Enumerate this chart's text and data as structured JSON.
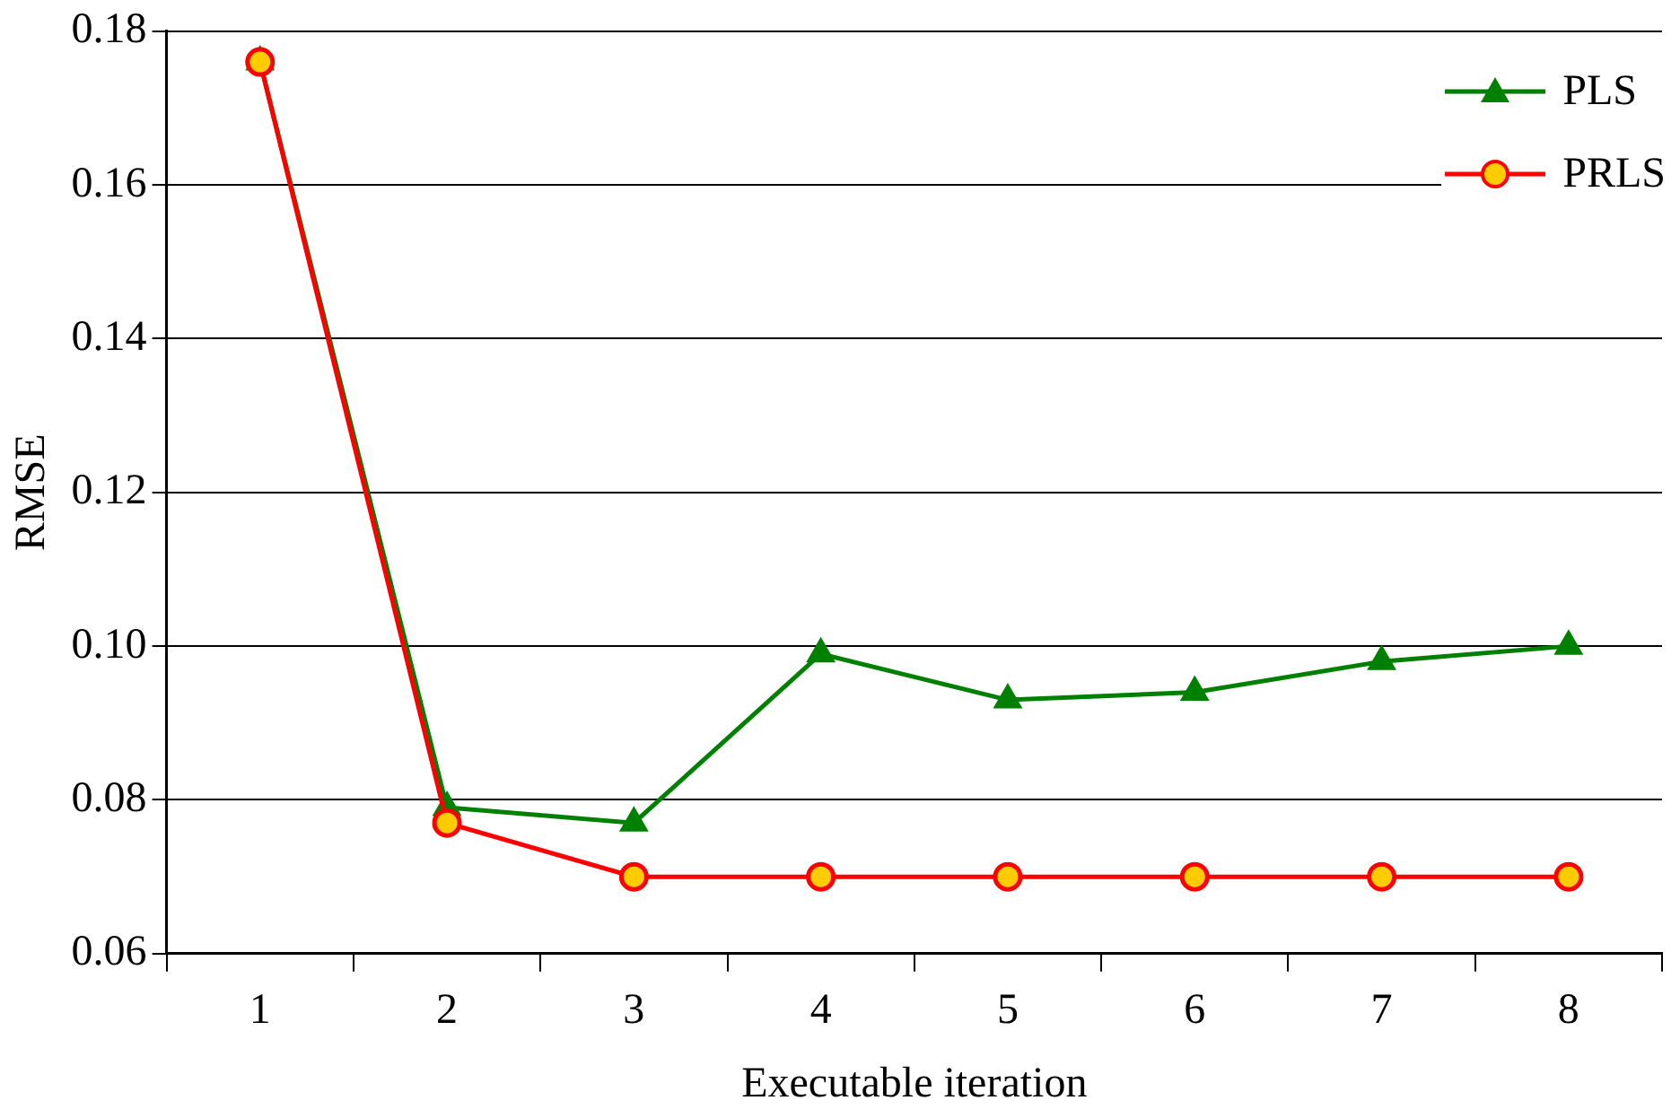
{
  "chart_data": {
    "type": "line",
    "xlabel": "Executable iteration",
    "ylabel": "RMSE",
    "categories": [
      "1",
      "2",
      "3",
      "4",
      "5",
      "6",
      "7",
      "8"
    ],
    "series": [
      {
        "name": "PLS",
        "color": "#008000",
        "marker": "triangle",
        "values": [
          0.176,
          0.079,
          0.077,
          0.099,
          0.093,
          0.094,
          0.098,
          0.1
        ]
      },
      {
        "name": "PRLS",
        "color": "#ff0000",
        "marker": "circle",
        "values": [
          0.176,
          0.077,
          0.07,
          0.07,
          0.07,
          0.07,
          0.07,
          0.07
        ]
      }
    ],
    "ylim": [
      0.06,
      0.18
    ],
    "yticks": [
      0.06,
      0.08,
      {
        "value": 0.1,
        "label": "0.10"
      },
      0.12,
      0.14,
      0.16,
      0.18
    ],
    "grid": "y",
    "legend": "top right"
  }
}
